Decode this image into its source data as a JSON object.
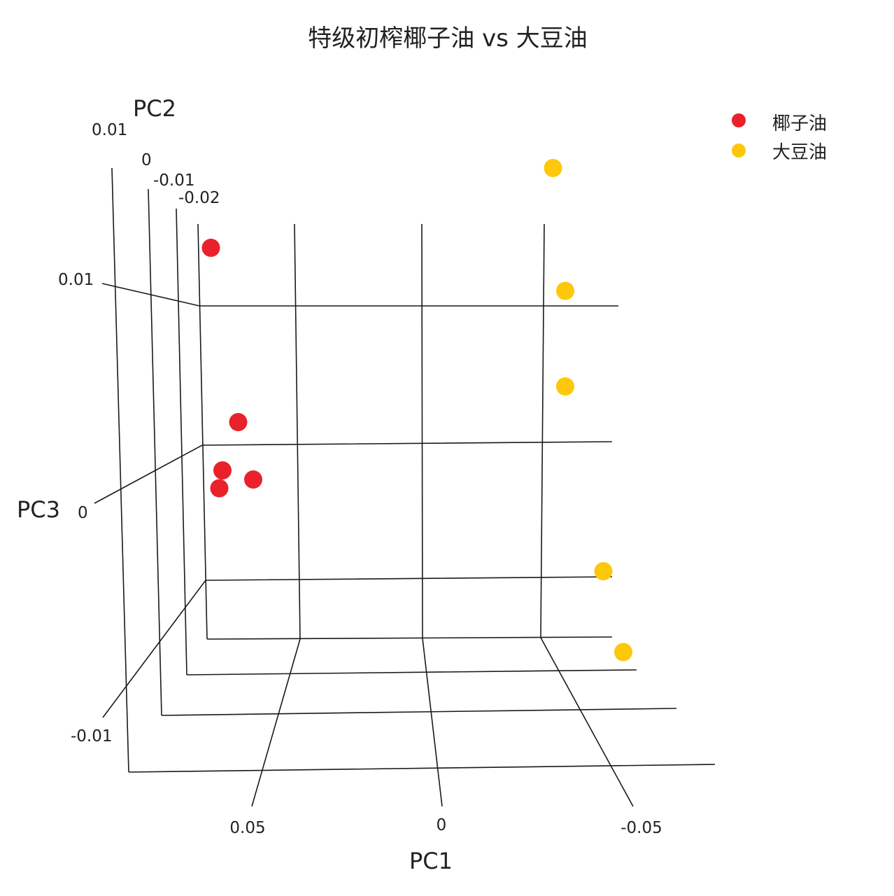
{
  "chart_data": {
    "type": "scatter",
    "title": "特级初榨椰子油 vs 大豆油",
    "projection": "3d",
    "axes": {
      "x": {
        "label": "PC1",
        "ticks": [
          "0.05",
          "0",
          "-0.05"
        ]
      },
      "y": {
        "label": "PC2",
        "ticks": [
          "0.01",
          "0",
          "-0.01",
          "-0.02"
        ]
      },
      "z": {
        "label": "PC3",
        "ticks": [
          "0.01",
          "0",
          "-0.01"
        ]
      }
    },
    "grid": true,
    "legend": {
      "position": "top-right"
    },
    "series": [
      {
        "name": "椰子油",
        "color": "#e8212b",
        "points": [
          {
            "x": 0.085,
            "y": -0.002,
            "z": 0.014
          },
          {
            "x": 0.067,
            "y": -0.014,
            "z": 0.0
          },
          {
            "x": 0.082,
            "y": 0.001,
            "z": -0.002
          },
          {
            "x": 0.085,
            "y": 0.004,
            "z": -0.003
          },
          {
            "x": 0.062,
            "y": -0.012,
            "z": -0.004
          }
        ]
      },
      {
        "name": "大豆油",
        "color": "#fdc80a",
        "points": [
          {
            "x": -0.065,
            "y": -0.02,
            "z": 0.018
          },
          {
            "x": -0.07,
            "y": -0.02,
            "z": 0.009
          },
          {
            "x": -0.07,
            "y": -0.02,
            "z": 0.002
          },
          {
            "x": -0.077,
            "y": -0.005,
            "z": -0.01
          },
          {
            "x": -0.08,
            "y": 0.004,
            "z": -0.015
          }
        ]
      }
    ]
  }
}
